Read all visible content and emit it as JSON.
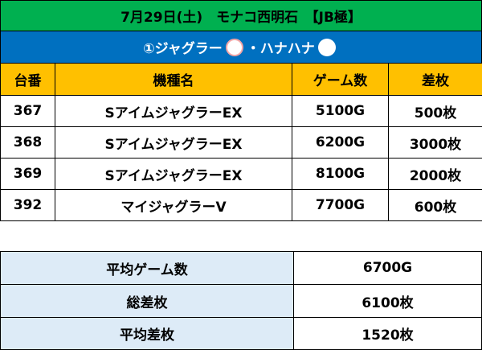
{
  "header": {
    "title": "7月29日(土)　モナコ西明石　【JB極】"
  },
  "banner": {
    "parts": [
      "①ジャグラー",
      "・ハナハナ"
    ]
  },
  "table": {
    "columns": [
      "台番",
      "機種名",
      "ゲーム数",
      "差枚"
    ],
    "rows": [
      [
        "367",
        "SアイムジャグラーEX",
        "5100G",
        "500枚"
      ],
      [
        "368",
        "SアイムジャグラーEX",
        "6200G",
        "3000枚"
      ],
      [
        "369",
        "SアイムジャグラーEX",
        "8100G",
        "2000枚"
      ],
      [
        "392",
        "マイジャグラーV",
        "7700G",
        "600枚"
      ]
    ]
  },
  "summary": {
    "rows": [
      [
        "平均ゲーム数",
        "6700G"
      ],
      [
        "総差枚",
        "6100枚"
      ],
      [
        "平均差枚",
        "1520枚"
      ]
    ]
  }
}
